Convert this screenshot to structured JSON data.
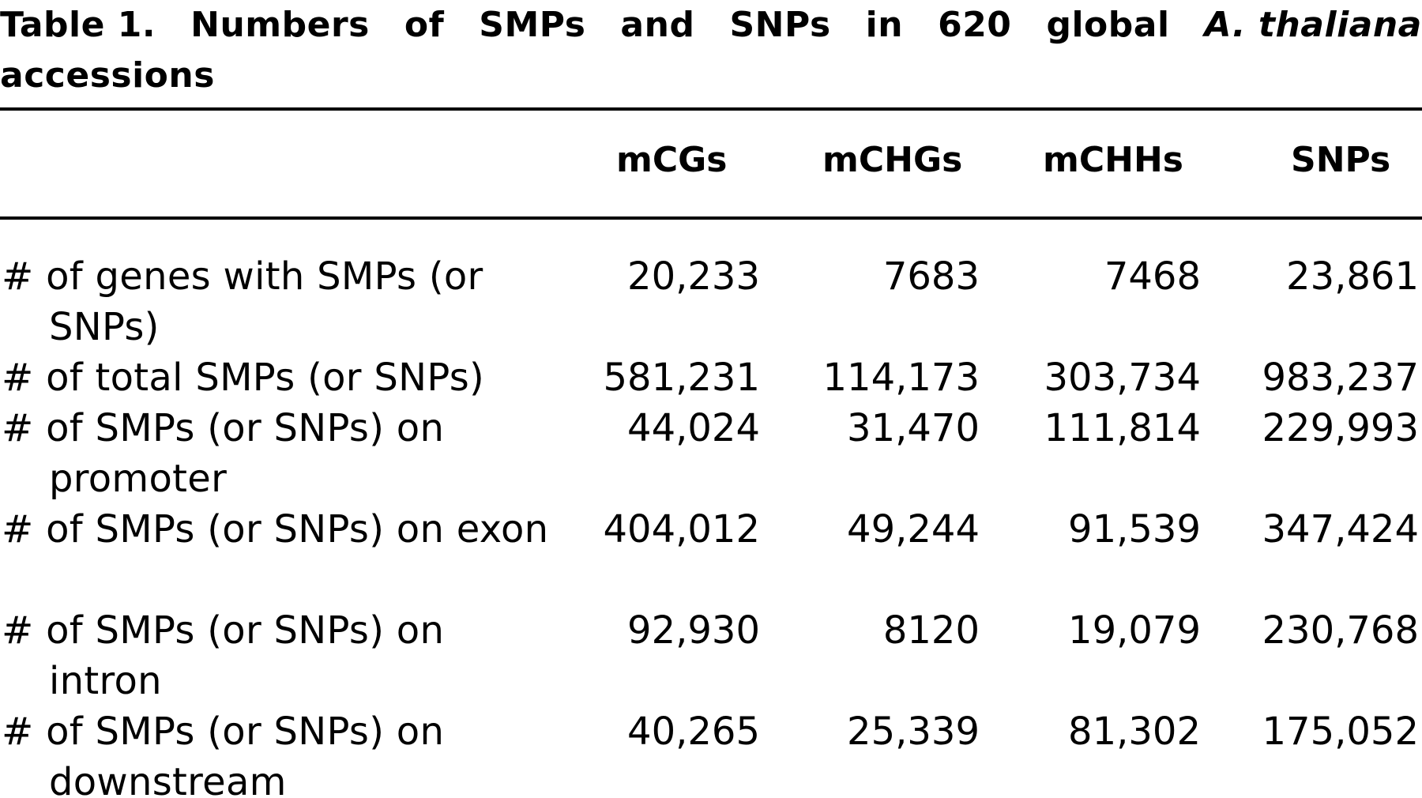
{
  "caption": {
    "prefix": "Table 1.",
    "words": [
      "Numbers",
      "of",
      "SMPs",
      "and",
      "SNPs",
      "in",
      "620",
      "global"
    ],
    "species": "A. thaliana",
    "continuation": "accessions"
  },
  "table": {
    "columns": [
      "mCGs",
      "mCHGs",
      "mCHHs",
      "SNPs"
    ],
    "rows": [
      {
        "label": "# of genes with SMPs (or SNPs)",
        "values": [
          "20,233",
          "7683",
          "7468",
          "23,861"
        ]
      },
      {
        "label": "# of total SMPs (or SNPs)",
        "values": [
          "581,231",
          "114,173",
          "303,734",
          "983,237"
        ]
      },
      {
        "label": "# of SMPs (or SNPs) on promoter",
        "values": [
          "44,024",
          "31,470",
          "111,814",
          "229,993"
        ]
      },
      {
        "label": "# of SMPs (or SNPs) on exon",
        "values": [
          "404,012",
          "49,244",
          "91,539",
          "347,424"
        ]
      },
      {
        "label": "# of SMPs (or SNPs) on intron",
        "values": [
          "92,930",
          "8120",
          "19,079",
          "230,768"
        ]
      },
      {
        "label": "# of SMPs (or SNPs) on downstream",
        "values": [
          "40,265",
          "25,339",
          "81,302",
          "175,052"
        ]
      }
    ]
  }
}
